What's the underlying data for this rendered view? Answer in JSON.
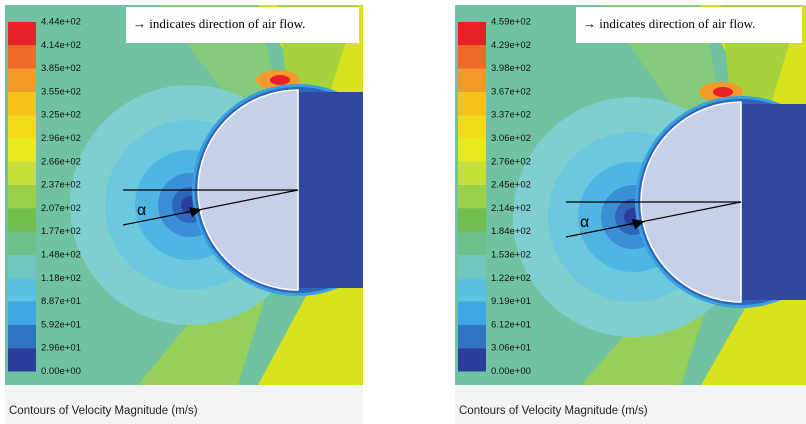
{
  "panels": [
    {
      "legend": [
        "4.44e+02",
        "4.14e+02",
        "3.85e+02",
        "3.55e+02",
        "3.25e+02",
        "2.96e+02",
        "2.66e+02",
        "2.37e+02",
        "2.07e+02",
        "1.77e+02",
        "1.48e+02",
        "1.18e+02",
        "8.87e+01",
        "5.92e+01",
        "2.96e+01",
        "0.00e+00"
      ],
      "note": "→ indicates direction of air flow.",
      "angle": "α",
      "caption": "Contours of Velocity Magnitude (m/s)"
    },
    {
      "legend": [
        "4.59e+02",
        "4.29e+02",
        "3.98e+02",
        "3.67e+02",
        "3.37e+02",
        "3.06e+02",
        "2.76e+02",
        "2.45e+02",
        "2.14e+02",
        "1.84e+02",
        "1.53e+02",
        "1.22e+02",
        "9.19e+01",
        "6.12e+01",
        "3.06e+01",
        "0.00e+00"
      ],
      "note": "→ indicates direction of air flow.",
      "angle": "α",
      "caption": "Contours of Velocity Magnitude (m/s)"
    }
  ]
}
